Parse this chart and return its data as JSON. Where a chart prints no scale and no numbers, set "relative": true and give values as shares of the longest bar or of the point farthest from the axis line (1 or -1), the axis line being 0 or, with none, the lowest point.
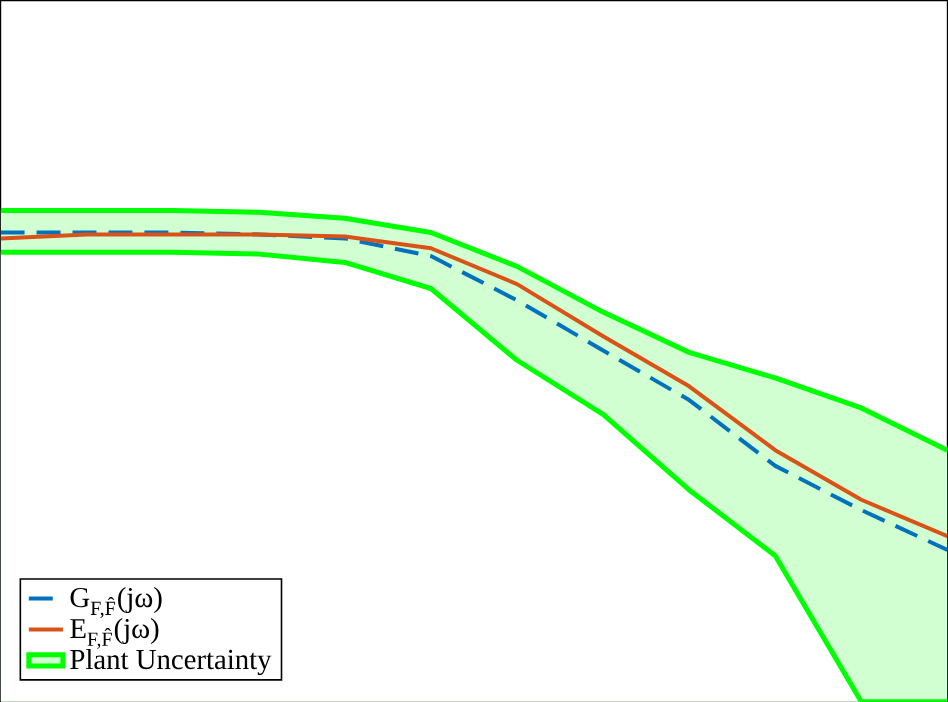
{
  "chart_data": {
    "type": "line",
    "relative": true,
    "legend": "bottom left",
    "categories": [
      null,
      null,
      null,
      null,
      null,
      null,
      null,
      null,
      null,
      null,
      null,
      null
    ],
    "series": [
      {
        "name": "G$_{F,F̂}$(jω)",
        "color": "#0072bd",
        "line_style": "dashed",
        "values": [
          0.955,
          0.955,
          0.955,
          0.951,
          0.943,
          0.907,
          0.817,
          0.715,
          0.614,
          0.48,
          0.39,
          0.309
        ]
      },
      {
        "name": "E$_{F,F̂}$(jω)",
        "color": "#d95319",
        "line_style": "solid",
        "values": [
          0.943,
          0.951,
          0.951,
          0.951,
          0.947,
          0.923,
          0.85,
          0.744,
          0.642,
          0.512,
          0.411,
          0.337
        ]
      },
      {
        "name": "Plant Uncertainty",
        "type": "area",
        "color": "#00ff00",
        "values": [
          1,
          1,
          1,
          0.996,
          0.984,
          0.955,
          0.886,
          0.793,
          0.711,
          0.659,
          0.598,
          0.512
        ]
      },
      {
        "type": "area",
        "color": "#00ff00",
        "values": [
          0.915,
          0.915,
          0.915,
          0.911,
          0.894,
          0.841,
          0.695,
          0.585,
          0.431,
          0.297,
          0,
          0
        ]
      }
    ]
  }
}
